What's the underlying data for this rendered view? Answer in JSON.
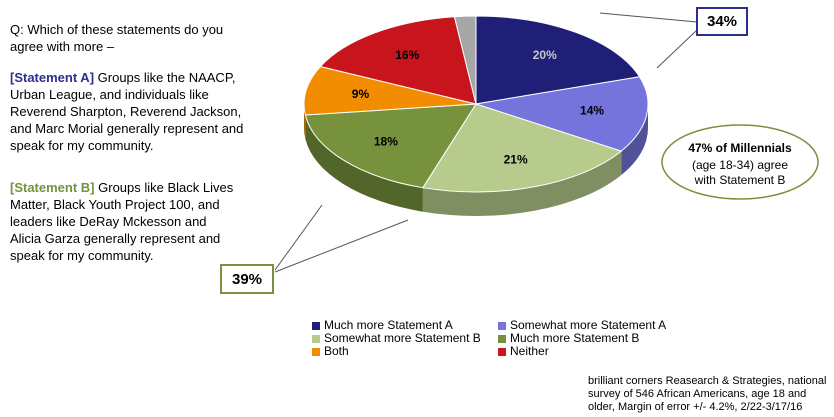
{
  "chart_data": {
    "type": "pie",
    "categories": [
      "Much more Statement A",
      "Somewhat more Statement A",
      "Somewhat more Statement B",
      "Much more Statement B",
      "Both",
      "Neither",
      null
    ],
    "values": [
      20,
      14,
      21,
      18,
      9,
      16,
      2
    ],
    "value_labels": [
      "20%",
      "14%",
      "21%",
      "18%",
      "9%",
      "16%",
      null
    ],
    "colors": [
      "#1f1f78",
      "#7474dc",
      "#b7cc8c",
      "#76923c",
      "#f28c00",
      "#c8141c",
      "#a6a6a6"
    ],
    "label_colors": [
      "#c8c8c8",
      "#000000",
      "#000000",
      "#000000",
      "#000000",
      "#000000",
      null
    ]
  },
  "question": "Q:  Which of these statements do you agree with more –",
  "statements": [
    {
      "label": "[Statement A]",
      "text": "Groups like the NAACP, Urban League, and individuals like Reverend Sharpton, Reverend Jackson, and Marc Morial generally represent and speak for my community.",
      "color": "#2e2e8c"
    },
    {
      "label": "[Statement B]",
      "text": "Groups like Black Lives Matter, Black Youth Project 100, and leaders like DeRay Mckesson and Alicia Garza generally represent and speak for my community.",
      "color": "#76923c"
    }
  ],
  "callouts": {
    "statement_a": "34%",
    "statement_b": "39%",
    "millennials_bold": "47% of Millennials",
    "millennials_text": "(age 18-34) agree with Statement B"
  },
  "source": "brilliant corners Reasearch & Strategies, national survey of 546 African Americans, age 18 and older, Margin of error +/- 4.2%, 2/22-3/17/16"
}
